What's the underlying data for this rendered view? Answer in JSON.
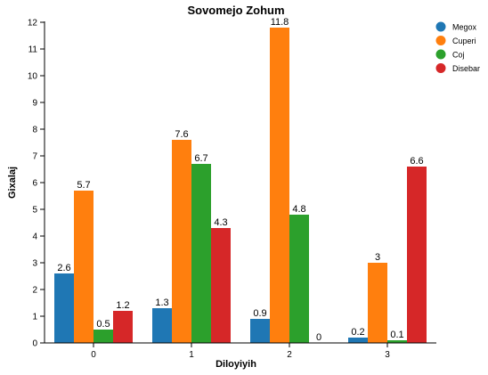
{
  "chart_data": {
    "type": "bar",
    "title": "Sovomejo Zohum",
    "xlabel": "Diloyiyih",
    "ylabel": "Gixalaj",
    "categories": [
      "0",
      "1",
      "2",
      "3"
    ],
    "ylim": [
      0,
      12
    ],
    "yticks": [
      0,
      1,
      2,
      3,
      4,
      5,
      6,
      7,
      8,
      9,
      10,
      11,
      12
    ],
    "grid": false,
    "legend_position": "top-right",
    "series": [
      {
        "name": "Megox",
        "color": "#1f77b4",
        "values": [
          2.6,
          1.3,
          0.9,
          0.2
        ],
        "labels": [
          "2.6",
          "1.3",
          "0.9",
          "0.2"
        ]
      },
      {
        "name": "Cuperi",
        "color": "#ff7f0e",
        "values": [
          5.7,
          7.6,
          11.8,
          3
        ],
        "labels": [
          "5.7",
          "7.6",
          "11.8",
          "3"
        ]
      },
      {
        "name": "Coj",
        "color": "#2ca02c",
        "values": [
          0.5,
          6.7,
          4.8,
          0.1
        ],
        "labels": [
          "0.5",
          "6.7",
          "4.8",
          "0.1"
        ]
      },
      {
        "name": "Disebar",
        "color": "#d62728",
        "values": [
          1.2,
          4.3,
          0,
          6.6
        ],
        "labels": [
          "1.2",
          "4.3",
          "0",
          "6.6"
        ]
      }
    ]
  }
}
